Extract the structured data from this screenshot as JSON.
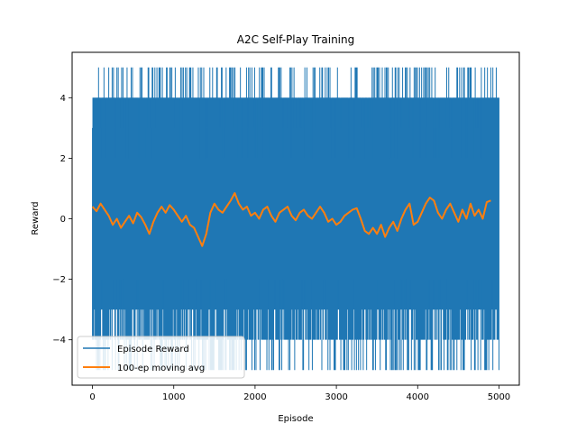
{
  "chart_data": {
    "type": "line",
    "title": "A2C Self-Play Training",
    "xlabel": "Episode",
    "ylabel": "Reward",
    "xlim": [
      -250,
      5250
    ],
    "ylim": [
      -5.5,
      5.5
    ],
    "xticks": [
      0,
      1000,
      2000,
      3000,
      4000,
      5000
    ],
    "yticks": [
      -4,
      -2,
      0,
      2,
      4
    ],
    "xtick_labels": [
      "0",
      "1000",
      "2000",
      "3000",
      "4000",
      "5000"
    ],
    "ytick_labels": [
      "−4",
      "−2",
      "0",
      "2",
      "4"
    ],
    "grid": false,
    "legend_position": "lower-left",
    "series": [
      {
        "name": "Episode Reward",
        "color": "#1f77b4",
        "episodes": 5000,
        "values_range": [
          -5,
          5
        ],
        "note_values": "per-episode reward oscillating densely between about -5 and 5"
      },
      {
        "name": "100-ep moving avg",
        "color": "#ff7f0e",
        "x": [
          0,
          50,
          100,
          150,
          200,
          250,
          300,
          350,
          400,
          450,
          500,
          550,
          600,
          650,
          700,
          750,
          800,
          850,
          900,
          950,
          1000,
          1050,
          1100,
          1150,
          1200,
          1250,
          1300,
          1350,
          1400,
          1450,
          1500,
          1550,
          1600,
          1650,
          1700,
          1750,
          1800,
          1850,
          1900,
          1950,
          2000,
          2050,
          2100,
          2150,
          2200,
          2250,
          2300,
          2350,
          2400,
          2450,
          2500,
          2550,
          2600,
          2650,
          2700,
          2750,
          2800,
          2850,
          2900,
          2950,
          3000,
          3050,
          3100,
          3150,
          3200,
          3250,
          3300,
          3350,
          3400,
          3450,
          3500,
          3550,
          3600,
          3650,
          3700,
          3750,
          3800,
          3850,
          3900,
          3950,
          4000,
          4050,
          4100,
          4150,
          4200,
          4250,
          4300,
          4350,
          4400,
          4450,
          4500,
          4550,
          4600,
          4650,
          4700,
          4750,
          4800,
          4850,
          4900
        ],
        "values": [
          0.4,
          0.25,
          0.5,
          0.3,
          0.1,
          -0.2,
          0.0,
          -0.3,
          -0.1,
          0.1,
          -0.15,
          0.2,
          0.05,
          -0.2,
          -0.5,
          -0.1,
          0.2,
          0.4,
          0.2,
          0.45,
          0.3,
          0.1,
          -0.1,
          0.1,
          -0.2,
          -0.3,
          -0.6,
          -0.9,
          -0.5,
          0.2,
          0.5,
          0.3,
          0.2,
          0.4,
          0.6,
          0.85,
          0.5,
          0.3,
          0.4,
          0.1,
          0.2,
          0.0,
          0.3,
          0.4,
          0.1,
          -0.1,
          0.2,
          0.3,
          0.4,
          0.1,
          -0.05,
          0.2,
          0.3,
          0.1,
          0.0,
          0.2,
          0.4,
          0.2,
          -0.1,
          0.0,
          -0.2,
          -0.1,
          0.1,
          0.2,
          0.3,
          0.35,
          0.0,
          -0.4,
          -0.5,
          -0.3,
          -0.5,
          -0.2,
          -0.6,
          -0.3,
          -0.1,
          -0.4,
          0.0,
          0.3,
          0.5,
          -0.2,
          -0.1,
          0.2,
          0.5,
          0.7,
          0.6,
          0.2,
          0.0,
          0.3,
          0.5,
          0.2,
          -0.1,
          0.3,
          0.0,
          0.5,
          0.1,
          0.3,
          0.0,
          0.55,
          0.6
        ]
      }
    ]
  }
}
